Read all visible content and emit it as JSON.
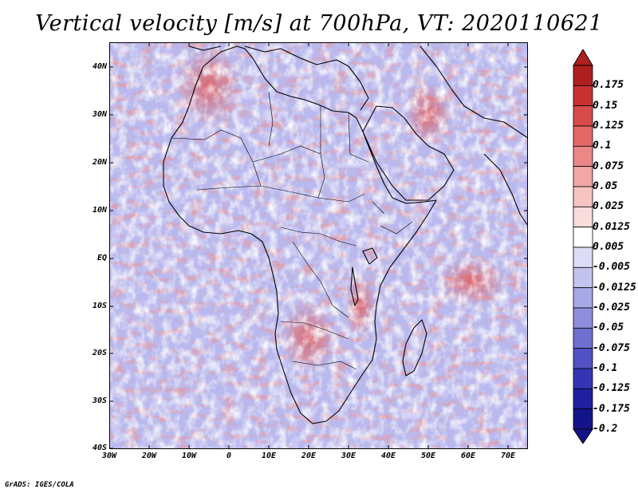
{
  "title": "Vertical velocity [m/s] at 700hPa, VT: 2020110621",
  "credit": "GrADS: IGES/COLA",
  "map": {
    "lat_labels": [
      "40N",
      "30N",
      "20N",
      "10N",
      "EQ",
      "10S",
      "20S",
      "30S",
      "40S"
    ],
    "lon_labels": [
      "30W",
      "20W",
      "10W",
      "0",
      "10E",
      "20E",
      "30E",
      "40E",
      "50E",
      "60E",
      "70E"
    ]
  },
  "colorbar": {
    "labels": [
      "0.175",
      "0.15",
      "0.125",
      "0.1",
      "0.075",
      "0.05",
      "0.025",
      "0.0125",
      "0.005",
      "-0.005",
      "-0.0125",
      "-0.025",
      "-0.05",
      "-0.075",
      "-0.1",
      "-0.125",
      "-0.175",
      "-0.2"
    ],
    "colors": [
      "#b01f1f",
      "#c83232",
      "#d84b4b",
      "#e46868",
      "#ec8787",
      "#f2a6a6",
      "#f6c3c3",
      "#f9dcdc",
      "#ffffff",
      "#dcdcf6",
      "#c3c3f0",
      "#a8a8e6",
      "#8e8edc",
      "#7070d0",
      "#5252c4",
      "#3535b4",
      "#1f1fa0",
      "#14148a"
    ]
  }
}
